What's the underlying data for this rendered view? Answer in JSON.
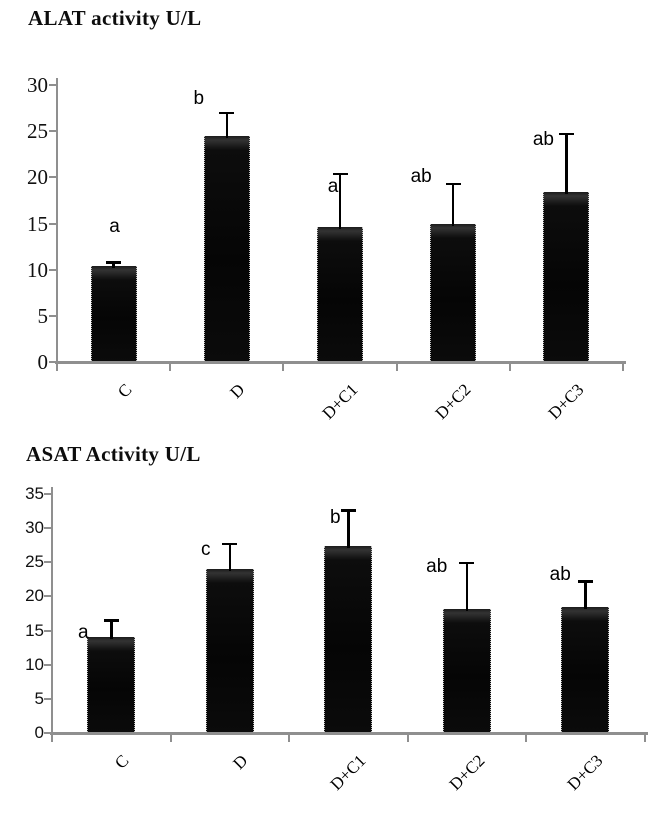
{
  "figure": {
    "background": "#ffffff",
    "bar_color": "#0a0a0a",
    "axis_color": "#8f8f8f"
  },
  "chart_data": [
    {
      "type": "bar",
      "title": "ALAT activity U/L",
      "categories": [
        "C",
        "D",
        "D+C1",
        "D+C2",
        "D+C3"
      ],
      "values": [
        10.4,
        24.5,
        14.6,
        14.9,
        18.4
      ],
      "errors_plus": [
        0.4,
        2.5,
        5.8,
        4.4,
        6.3
      ],
      "sig_labels": [
        "a",
        "b",
        "a",
        "ab",
        "ab"
      ],
      "yticks": [
        0,
        5,
        10,
        15,
        20,
        25,
        30
      ],
      "ylim": [
        0,
        30
      ],
      "xlabel": "",
      "ylabel": "",
      "grid": "off",
      "legend": "none"
    },
    {
      "type": "bar",
      "title": "ASAT Activity U/L",
      "categories": [
        "C",
        "D",
        "D+C1",
        "D+C2",
        "D+C3"
      ],
      "values": [
        14.0,
        24.0,
        27.4,
        18.2,
        18.4
      ],
      "errors_plus": [
        2.5,
        3.7,
        5.2,
        6.7,
        3.8
      ],
      "sig_labels": [
        "a",
        "c",
        "b",
        "ab",
        "ab"
      ],
      "yticks": [
        0,
        5,
        10,
        15,
        20,
        25,
        30,
        35
      ],
      "ylim": [
        0,
        35
      ],
      "xlabel": "",
      "ylabel": "",
      "grid": "off",
      "legend": "none"
    }
  ]
}
